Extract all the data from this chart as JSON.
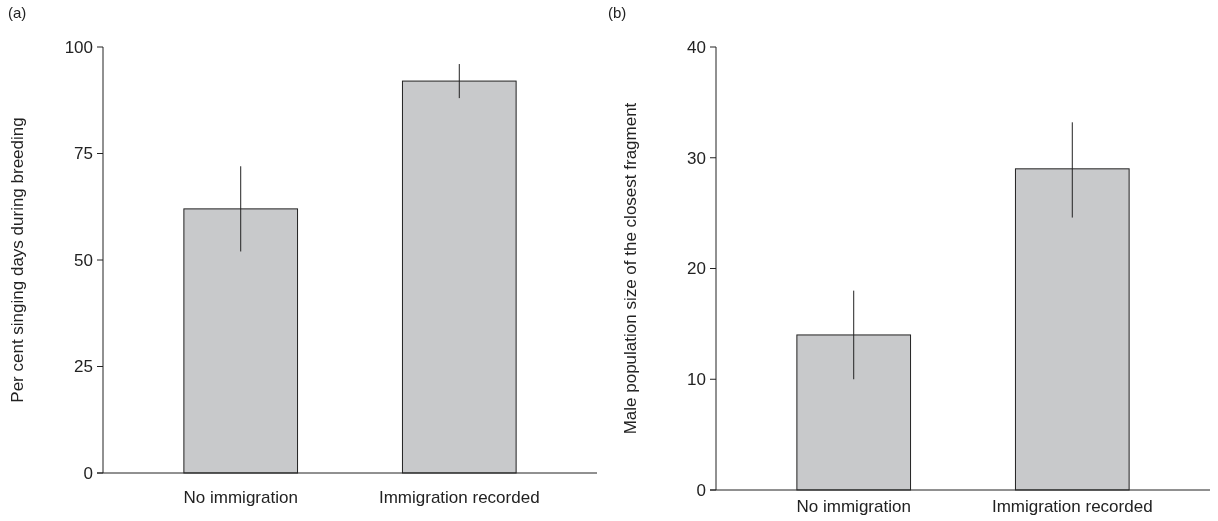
{
  "chart_data": [
    {
      "type": "bar",
      "title": "(a)",
      "ylabel": "Per cent singing days during breeding",
      "categories": [
        "No immigration",
        "Immigration recorded"
      ],
      "values": [
        62,
        92
      ],
      "errors": [
        [
          52,
          72
        ],
        [
          88,
          96
        ]
      ],
      "color": "#c8c9cb",
      "ylim": [
        0,
        100
      ],
      "yticks": [
        0,
        25,
        50,
        75,
        100
      ],
      "grid": false
    },
    {
      "type": "bar",
      "title": "(b)",
      "ylabel": "Male population size of the closest fragment",
      "categories": [
        "No immigration",
        "Immigration recorded"
      ],
      "values": [
        14,
        29
      ],
      "errors": [
        [
          10,
          18
        ],
        [
          24.6,
          33.2
        ]
      ],
      "color": "#c8c9cb",
      "ylim": [
        0,
        40
      ],
      "yticks": [
        0,
        10,
        20,
        30,
        40
      ],
      "grid": false
    }
  ]
}
